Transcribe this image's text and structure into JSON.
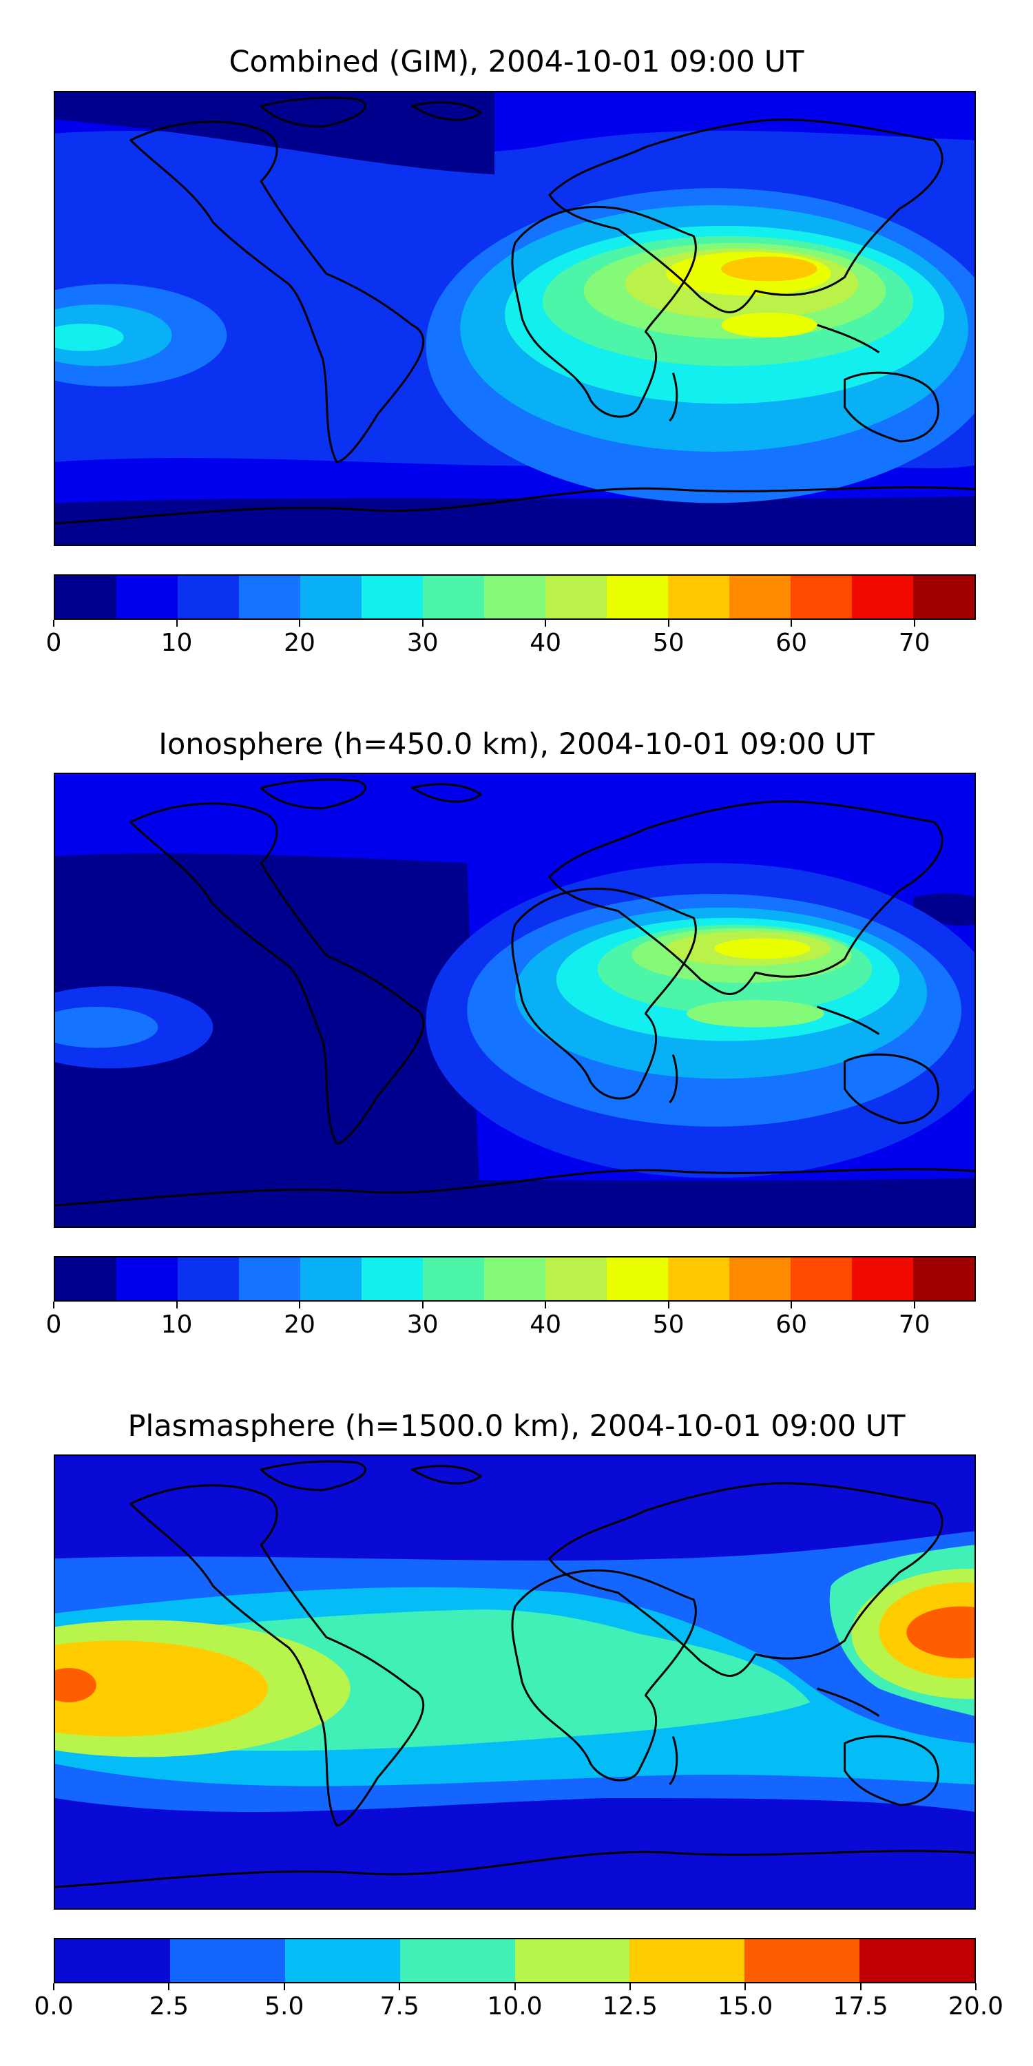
{
  "panels": [
    {
      "title": "Combined (GIM), 2004-10-01 09:00 UT",
      "colorbar": {
        "colors": [
          "#00008f",
          "#0000ef",
          "#0a32f0",
          "#1473ff",
          "#0ab0f5",
          "#13eeee",
          "#4cf5a8",
          "#84fa78",
          "#bbf24a",
          "#eaff00",
          "#ffc800",
          "#ff8a00",
          "#ff4a00",
          "#f00a00",
          "#a00000"
        ],
        "ticks": [
          "0",
          "10",
          "20",
          "30",
          "40",
          "50",
          "60",
          "70"
        ]
      }
    },
    {
      "title": "Ionosphere  (h=450.0 km), 2004-10-01 09:00 UT",
      "colorbar": {
        "colors": [
          "#00008f",
          "#0000ef",
          "#0a32f0",
          "#1473ff",
          "#0ab0f5",
          "#13eeee",
          "#4cf5a8",
          "#84fa78",
          "#bbf24a",
          "#eaff00",
          "#ffc800",
          "#ff8a00",
          "#ff4a00",
          "#f00a00",
          "#a00000"
        ],
        "ticks": [
          "0",
          "10",
          "20",
          "30",
          "40",
          "50",
          "60",
          "70"
        ]
      }
    },
    {
      "title": "Plasmasphere (h=1500.0 km), 2004-10-01 09:00 UT",
      "colorbar": {
        "colors": [
          "#0a0ad6",
          "#1565ff",
          "#04bdf7",
          "#40f0b6",
          "#b7f54c",
          "#ffcc00",
          "#ff5e00",
          "#c00000"
        ],
        "ticks": [
          "0.0",
          "2.5",
          "5.0",
          "7.5",
          "10.0",
          "12.5",
          "15.0",
          "17.5",
          "20.0"
        ]
      }
    }
  ]
}
